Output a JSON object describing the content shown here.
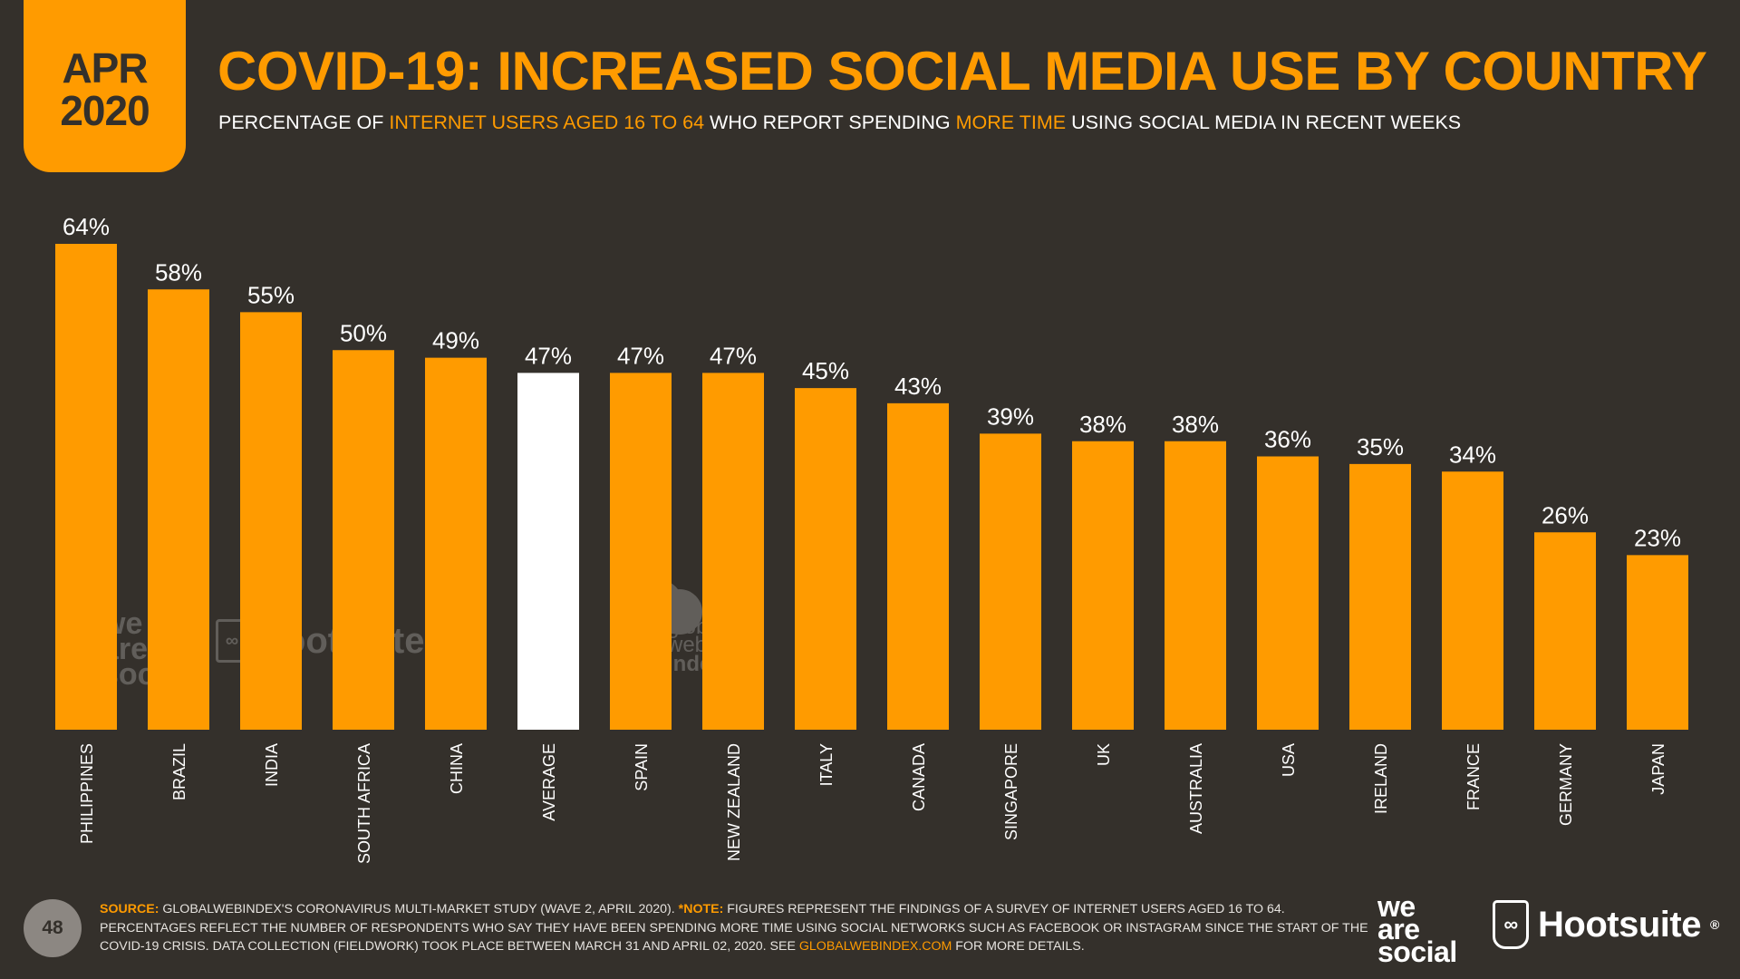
{
  "badge": {
    "month": "APR",
    "year": "2020"
  },
  "header": {
    "title": "COVID-19: INCREASED SOCIAL MEDIA USE BY COUNTRY",
    "subtitle_1": "PERCENTAGE OF ",
    "subtitle_hl_1": "INTERNET USERS AGED 16 TO 64",
    "subtitle_2": " WHO REPORT SPENDING ",
    "subtitle_hl_2": "MORE TIME",
    "subtitle_3": " USING SOCIAL MEDIA IN RECENT WEEKS"
  },
  "colors": {
    "background": "#34302b",
    "accent": "#ff9b00",
    "highlight_bar": "#ffffff"
  },
  "chart_data": {
    "type": "bar",
    "categories": [
      "PHILIPPINES",
      "BRAZIL",
      "INDIA",
      "SOUTH AFRICA",
      "CHINA",
      "AVERAGE",
      "SPAIN",
      "NEW ZEALAND",
      "ITALY",
      "CANADA",
      "SINGAPORE",
      "UK",
      "AUSTRALIA",
      "USA",
      "IRELAND",
      "FRANCE",
      "GERMANY",
      "JAPAN"
    ],
    "values": [
      64,
      58,
      55,
      50,
      49,
      47,
      47,
      47,
      45,
      43,
      39,
      38,
      38,
      36,
      35,
      34,
      26,
      23
    ],
    "labels": [
      "64%",
      "58%",
      "55%",
      "50%",
      "49%",
      "47%",
      "47%",
      "47%",
      "45%",
      "43%",
      "39%",
      "38%",
      "38%",
      "36%",
      "35%",
      "34%",
      "26%",
      "23%"
    ],
    "highlight_category": "AVERAGE",
    "unit": "%",
    "ylim": [
      0,
      64
    ],
    "grid": false
  },
  "watermarks": {
    "we_are_social": [
      "we",
      "are",
      "social"
    ],
    "hootsuite": "Hootsuite",
    "gwi": [
      "global",
      "web",
      "index"
    ]
  },
  "footer": {
    "page_number": "48",
    "source_label": "SOURCE:",
    "source_text": " GLOBALWEBINDEX'S CORONAVIRUS MULTI-MARKET STUDY (WAVE 2, APRIL 2020). ",
    "note_label": "*NOTE:",
    "note_text": " FIGURES REPRESENT THE FINDINGS OF A SURVEY OF INTERNET USERS AGED 16 TO 64. PERCENTAGES REFLECT THE NUMBER OF RESPONDENTS WHO SAY THEY HAVE BEEN SPENDING MORE TIME USING SOCIAL NETWORKS SUCH AS FACEBOOK OR INSTAGRAM SINCE THE START OF THE COVID-19 CRISIS. DATA COLLECTION (FIELDWORK) TOOK PLACE BETWEEN MARCH 31 AND APRIL 02, 2020. SEE ",
    "link": "GLOBALWEBINDEX.COM",
    "tail": " FOR MORE DETAILS."
  },
  "logos": {
    "we_are_social": [
      "we",
      "are",
      "social"
    ],
    "hootsuite": "Hootsuite",
    "hootsuite_mark": "®"
  }
}
